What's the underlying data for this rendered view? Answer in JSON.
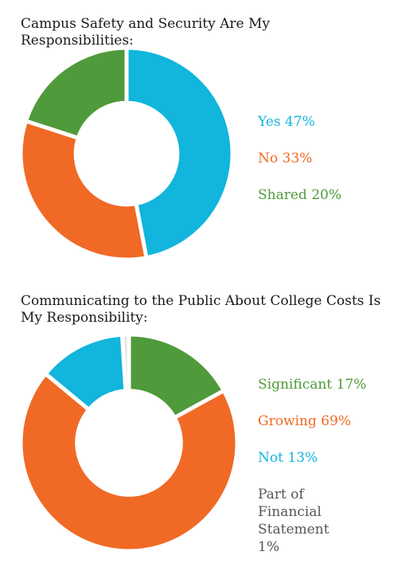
{
  "chart_data": [
    {
      "type": "pie",
      "subtype": "donut",
      "title": "Campus Safety and Security Are My Responsibilities:",
      "legend_position": "right",
      "series": [
        {
          "label": "Yes",
          "value": 47,
          "display": "Yes 47%",
          "color": "#12b5dc"
        },
        {
          "label": "No",
          "value": 33,
          "display": "No 33%",
          "color": "#f06a25"
        },
        {
          "label": "Shared",
          "value": 20,
          "display": "Shared 20%",
          "color": "#4f9a3a"
        }
      ]
    },
    {
      "type": "pie",
      "subtype": "donut",
      "title": "Communicating to the Public About College Costs Is My Responsibility:",
      "legend_position": "right",
      "series": [
        {
          "label": "Significant",
          "value": 17,
          "display": "Significant 17%",
          "color": "#4f9a3a"
        },
        {
          "label": "Growing",
          "value": 69,
          "display": "Growing 69%",
          "color": "#f06a25"
        },
        {
          "label": "Not",
          "value": 13,
          "display": "Not 13%",
          "color": "#12b5dc"
        },
        {
          "label": "Part of Financial Statement",
          "value": 1,
          "display": "Part of Financial\nStatement 1%",
          "color": "#e4e4e4"
        }
      ]
    }
  ],
  "colors": {
    "legend_text_gray": "#555555",
    "separator": "#ffffff"
  }
}
